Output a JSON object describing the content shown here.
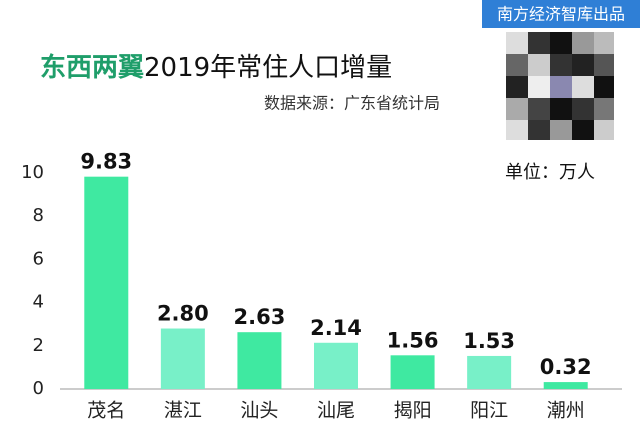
{
  "chart_data": {
    "type": "bar",
    "badge": "南方经济智库出品",
    "title_highlight": "东西两翼",
    "title": "2019年常住人口增量",
    "subtitle": "数据来源：广东省统计局",
    "unit": "单位：万人",
    "categories": [
      "茂名",
      "湛江",
      "汕头",
      "汕尾",
      "揭阳",
      "阳江",
      "潮州"
    ],
    "values": [
      9.83,
      2.8,
      2.63,
      2.14,
      1.56,
      1.53,
      0.32
    ],
    "value_labels": [
      "9.83",
      "2.80",
      "2.63",
      "2.14",
      "1.56",
      "1.53",
      "0.32"
    ],
    "colors": [
      "#3fe9a1",
      "#78f0c8",
      "#3fe9a1",
      "#78f0c8",
      "#3fe9a1",
      "#78f0c8",
      "#3fe9a1"
    ],
    "ylim": [
      0,
      10
    ],
    "yticks": [
      0,
      2,
      4,
      6,
      8,
      10
    ],
    "grid": false
  }
}
